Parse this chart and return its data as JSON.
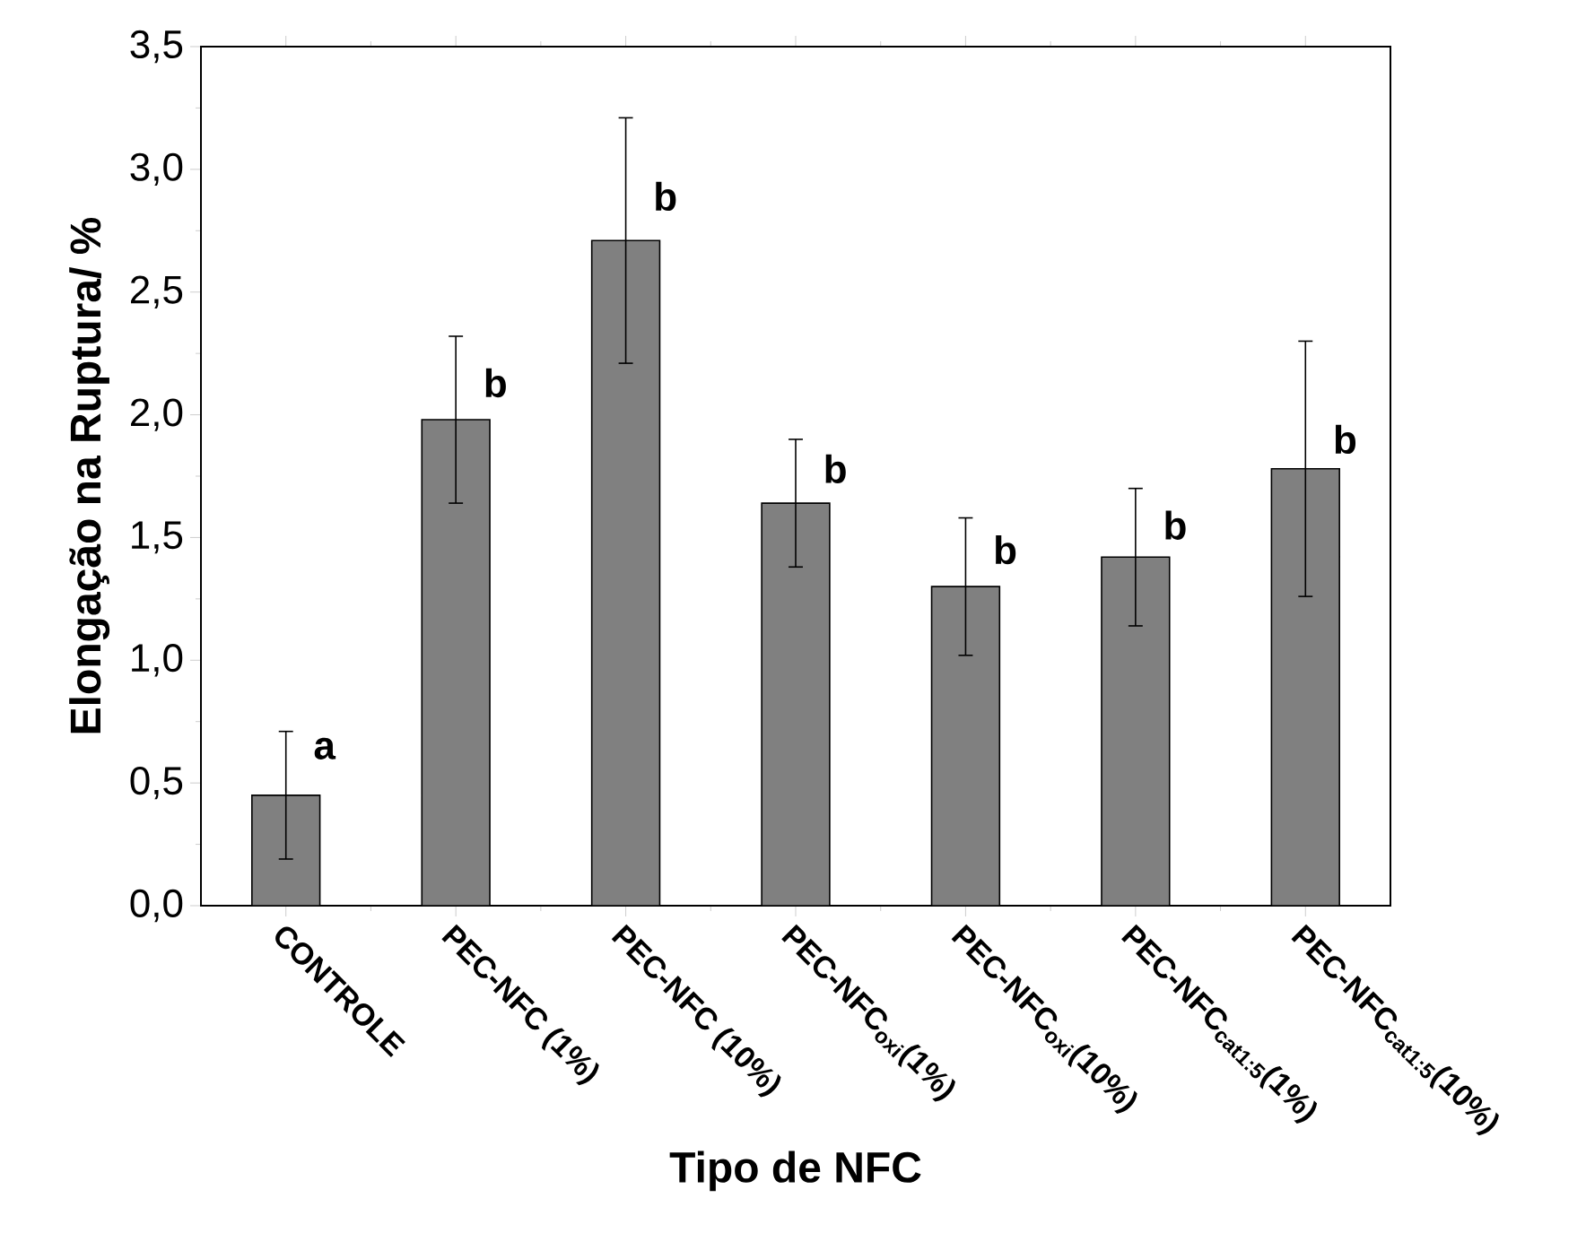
{
  "chart_data": {
    "type": "bar",
    "xlabel": "Tipo de NFC",
    "ylabel": "Elongação na Ruptura/ %",
    "categories": [
      "CONTROLE",
      "PEC-NFC (1%)",
      "PEC-NFC (10%)",
      "PEC-NFC$_{oxi}$(1%)",
      "PEC-NFC$_{oxi}$(10%)",
      "PEC-NFC$_{cat1:5}$(1%)",
      "PEC-NFC$_{cat1:5}$(10%)"
    ],
    "values": [
      0.45,
      1.98,
      2.71,
      1.64,
      1.3,
      1.42,
      1.78
    ],
    "errors": [
      0.26,
      0.34,
      0.5,
      0.26,
      0.28,
      0.28,
      0.52
    ],
    "color": "#808080",
    "ylim": [
      0,
      3.5
    ],
    "yticks": [
      {
        "value": 0,
        "label": "0,0"
      },
      {
        "value": 0.5,
        "label": "0,5"
      },
      {
        "value": 1,
        "label": "1,0"
      },
      {
        "value": 1.5,
        "label": "1,5"
      },
      {
        "value": 2,
        "label": "2,0"
      },
      {
        "value": 2.5,
        "label": "2,5"
      },
      {
        "value": 3,
        "label": "3,0"
      },
      {
        "value": 3.5,
        "label": "3,5"
      }
    ],
    "annotations": [
      {
        "text": "a",
        "x": "CONTROLE",
        "y": 0.64
      },
      {
        "text": "b",
        "x": "PEC-NFC (1%)",
        "y": 2.13
      },
      {
        "text": "b",
        "x": "PEC-NFC (10%)",
        "y": 2.89
      },
      {
        "text": "b",
        "x": "PEC-NFC$_{oxi}$(1%)",
        "y": 1.78
      },
      {
        "text": "b",
        "x": "PEC-NFC$_{oxi}$(10%)",
        "y": 1.45
      },
      {
        "text": "b",
        "x": "PEC-NFC$_{cat1:5}$(1%)",
        "y": 1.55
      },
      {
        "text": "b",
        "x": "PEC-NFC$_{cat1:5}$(10%)",
        "y": 1.9
      }
    ]
  }
}
